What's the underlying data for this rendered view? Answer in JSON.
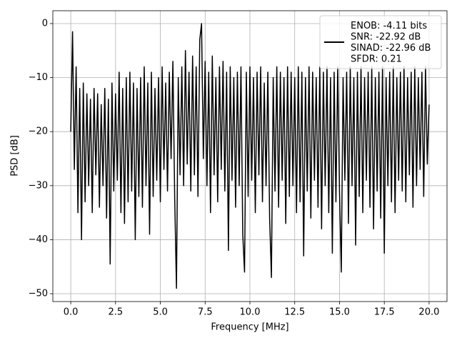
{
  "chart_data": {
    "type": "line",
    "xlabel": "Frequency [MHz]",
    "ylabel": "PSD [dB]",
    "xlim": [
      -1.0,
      21.0
    ],
    "ylim": [
      -51.45,
      2.38
    ],
    "xticks": [
      {
        "value": 0,
        "label": "0.0"
      },
      2.5,
      {
        "value": 5,
        "label": "5.0"
      },
      7.5,
      {
        "value": 10,
        "label": "10.0"
      },
      12.5,
      {
        "value": 15,
        "label": "15.0"
      },
      17.5,
      {
        "value": 20,
        "label": "20.0"
      }
    ],
    "yticks": [
      {
        "value": 0,
        "label": "0"
      },
      {
        "value": -10,
        "label": "−10"
      },
      {
        "value": -20,
        "label": "−20"
      },
      {
        "value": -30,
        "label": "−30"
      },
      {
        "value": -40,
        "label": "−40"
      },
      {
        "value": -50,
        "label": "−50"
      }
    ],
    "grid": true,
    "legend": "upper right",
    "x": [
      0.0,
      0.1,
      0.2,
      0.3,
      0.4,
      0.5,
      0.6,
      0.7,
      0.8,
      0.9,
      1.0,
      1.1,
      1.2,
      1.3,
      1.4,
      1.5,
      1.6,
      1.7,
      1.8,
      1.9,
      2.0,
      2.1,
      2.2,
      2.3,
      2.4,
      2.5,
      2.6,
      2.7,
      2.8,
      2.9,
      3.0,
      3.1,
      3.2,
      3.3,
      3.4,
      3.5,
      3.6,
      3.7,
      3.8,
      3.9,
      4.0,
      4.1,
      4.2,
      4.3,
      4.4,
      4.5,
      4.6,
      4.7,
      4.8,
      4.9,
      5.0,
      5.1,
      5.2,
      5.3,
      5.4,
      5.5,
      5.6,
      5.7,
      5.8,
      5.9,
      6.0,
      6.1,
      6.2,
      6.3,
      6.4,
      6.5,
      6.6,
      6.7,
      6.8,
      6.9,
      7.0,
      7.1,
      7.2,
      7.3,
      7.4,
      7.5,
      7.6,
      7.7,
      7.8,
      7.9,
      8.0,
      8.1,
      8.2,
      8.3,
      8.4,
      8.5,
      8.6,
      8.7,
      8.8,
      8.9,
      9.0,
      9.1,
      9.2,
      9.3,
      9.4,
      9.5,
      9.6,
      9.7,
      9.8,
      9.9,
      10.0,
      10.1,
      10.2,
      10.3,
      10.4,
      10.5,
      10.6,
      10.7,
      10.8,
      10.9,
      11.0,
      11.1,
      11.2,
      11.3,
      11.4,
      11.5,
      11.6,
      11.7,
      11.8,
      11.9,
      12.0,
      12.1,
      12.2,
      12.3,
      12.4,
      12.5,
      12.6,
      12.7,
      12.8,
      12.9,
      13.0,
      13.1,
      13.2,
      13.3,
      13.4,
      13.5,
      13.6,
      13.7,
      13.8,
      13.9,
      14.0,
      14.1,
      14.2,
      14.3,
      14.4,
      14.5,
      14.6,
      14.7,
      14.8,
      14.9,
      15.0,
      15.1,
      15.2,
      15.3,
      15.4,
      15.5,
      15.6,
      15.7,
      15.8,
      15.9,
      16.0,
      16.1,
      16.2,
      16.3,
      16.4,
      16.5,
      16.6,
      16.7,
      16.8,
      16.9,
      17.0,
      17.1,
      17.2,
      17.3,
      17.4,
      17.5,
      17.6,
      17.7,
      17.8,
      17.9,
      18.0,
      18.1,
      18.2,
      18.3,
      18.4,
      18.5,
      18.6,
      18.7,
      18.8,
      18.9,
      19.0,
      19.1,
      19.2,
      19.3,
      19.4,
      19.5,
      19.6,
      19.7,
      19.8,
      19.9,
      20.0
    ],
    "series": [
      {
        "name": "ENOB: -4.11 bits\nSNR: -22.92 dB\nSINAD: -22.96 dB\nSFDR: 0.21",
        "color": "#000000",
        "values": [
          -20,
          -1.5,
          -27,
          -8,
          -35,
          -12,
          -40,
          -11,
          -33,
          -13,
          -30,
          -14,
          -35,
          -12,
          -28,
          -13,
          -34,
          -15,
          -30,
          -12,
          -36,
          -14,
          -44.5,
          -11,
          -31,
          -13,
          -29,
          -9,
          -35,
          -12,
          -37,
          -10,
          -33,
          -9,
          -31,
          -11,
          -40,
          -12,
          -32,
          -10,
          -34,
          -8,
          -30,
          -11,
          -39,
          -9,
          -32,
          -12,
          -29,
          -10,
          -33,
          -8,
          -27,
          -11,
          -31,
          -9,
          -25,
          -7,
          -32,
          -49,
          -10,
          -28,
          -8,
          -30,
          -5,
          -26,
          -9,
          -31,
          -6,
          -28,
          -8,
          -32,
          -3,
          0,
          -25,
          -7,
          -30,
          -9,
          -35,
          -6,
          -28,
          -10,
          -33,
          -8,
          -27,
          -7,
          -31,
          -9,
          -42,
          -8,
          -29,
          -10,
          -34,
          -9,
          -30,
          -8,
          -39,
          -46,
          -9,
          -32,
          -8,
          -29,
          -10,
          -35,
          -9,
          -28,
          -8,
          -33,
          -11,
          -30,
          -9,
          -36,
          -47,
          -10,
          -31,
          -8,
          -34,
          -9,
          -29,
          -10,
          -37,
          -8,
          -32,
          -9,
          -30,
          -10,
          -35,
          -8,
          -33,
          -9,
          -43,
          -10,
          -31,
          -8,
          -36,
          -9,
          -29,
          -10,
          -34,
          -8,
          -38,
          -9,
          -30,
          -8,
          -35,
          -10,
          -42.5,
          -9,
          -33,
          -8,
          -31,
          -46,
          -10,
          -29,
          -9,
          -37,
          -8,
          -30,
          -10,
          -41,
          -9,
          -32,
          -8,
          -35,
          -10,
          -29,
          -9,
          -34,
          -8,
          -38,
          -10,
          -31,
          -9,
          -36,
          -8,
          -42.5,
          -10,
          -30,
          -9,
          -33,
          -8,
          -35,
          -10,
          -29,
          -9,
          -31,
          -8,
          -33,
          -10,
          -28,
          -9,
          -34,
          -8,
          -30,
          -10,
          -27,
          -9,
          -32,
          -8,
          -26,
          -15
        ]
      }
    ]
  }
}
